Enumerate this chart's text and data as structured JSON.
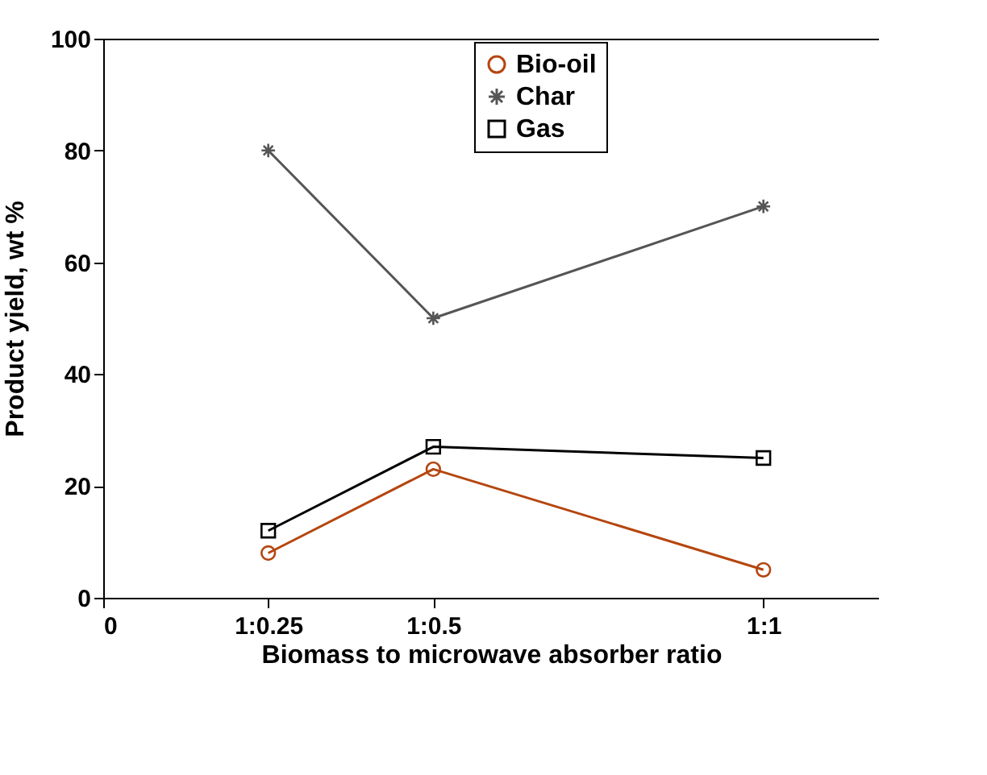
{
  "chart_data": {
    "type": "line",
    "xlabel": "Biomass to microwave absorber ratio",
    "ylabel": "Product yield, wt %",
    "categories": [
      "0",
      "1:0.25",
      "1:0.5",
      null,
      "1:1"
    ],
    "ylim": [
      0,
      100
    ],
    "yticks": [
      0,
      20,
      40,
      60,
      80,
      100
    ],
    "series": [
      {
        "name": "Bio-oil",
        "color": "#b5460f",
        "marker": "circle",
        "values": [
          null,
          8,
          23,
          null,
          5
        ]
      },
      {
        "name": "Char",
        "color": "#555555",
        "marker": "cross",
        "values": [
          null,
          80,
          50,
          null,
          70
        ]
      },
      {
        "name": "Gas",
        "color": "#000000",
        "marker": "square",
        "values": [
          null,
          12,
          27,
          null,
          25
        ]
      }
    ],
    "grid": false,
    "legend": "top",
    "line_style": "solid"
  }
}
